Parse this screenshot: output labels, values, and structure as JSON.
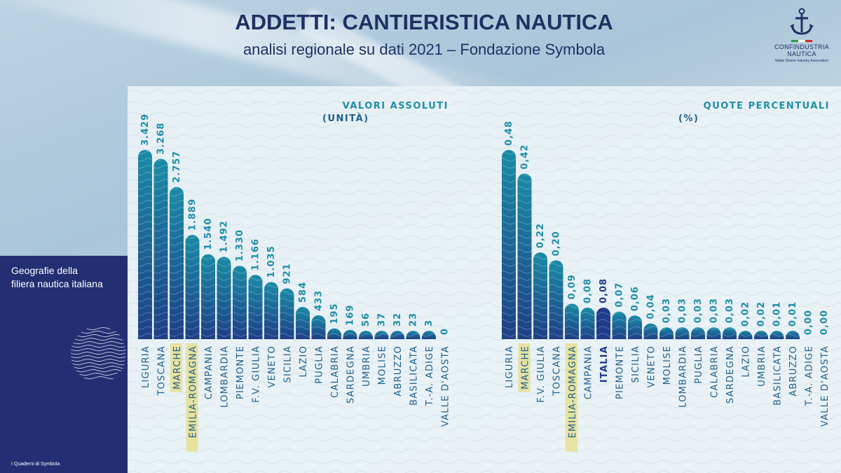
{
  "header": {
    "title": "ADDETTI: CANTIERISTICA NAUTICA",
    "subtitle": "analisi regionale su dati 2021 – Fondazione Symbola"
  },
  "logo": {
    "line1": "CONFINDUSTRIA",
    "line2": "NAUTICA",
    "tagline": "Italian Marine Industry Association",
    "flag_colors": [
      "#2e9a4a",
      "#ffffff",
      "#d9262b"
    ]
  },
  "side_panel": {
    "line1": "Geografie della",
    "line2": "filiera nautica italiana",
    "footer": "I Quaderni di Symbola"
  },
  "colors": {
    "bar_top": "#1a8ba6",
    "bar_bottom": "#1d3f86",
    "italia_bar": "#1e3b8c",
    "value_label": "#1f8ea9",
    "category_label": "#1f5f8c",
    "highlight": "#e6e2a0",
    "chart_title": "#1f8ea9"
  },
  "chart_data": [
    {
      "type": "bar",
      "title": "VALORI ASSOLUTI",
      "subtitle": "(UNITÀ)",
      "categories": [
        "LIGURIA",
        "TOSCANA",
        "MARCHE",
        "EMILIA-ROMAGNA",
        "CAMPANIA",
        "LOMBARDIA",
        "PIEMONTE",
        "F.V. GIULIA",
        "VENETO",
        "SICILIA",
        "LAZIO",
        "PUGLIA",
        "CALABRIA",
        "SARDEGNA",
        "UMBRIA",
        "MOLISE",
        "ABRUZZO",
        "BASILICATA",
        "T.-A. ADIGE",
        "VALLE D'AOSTA"
      ],
      "values": [
        3429,
        3268,
        2757,
        1889,
        1540,
        1492,
        1330,
        1166,
        1035,
        921,
        584,
        433,
        195,
        169,
        56,
        37,
        32,
        23,
        3,
        0
      ],
      "value_labels": [
        "3.429",
        "3.268",
        "2.757",
        "1.889",
        "1.540",
        "1.492",
        "1.330",
        "1.166",
        "1.035",
        "921",
        "584",
        "433",
        "195",
        "169",
        "56",
        "37",
        "32",
        "23",
        "3",
        "0"
      ],
      "highlighted": [
        "MARCHE",
        "EMILIA-ROMAGNA"
      ],
      "ylim": [
        0,
        3429
      ]
    },
    {
      "type": "bar",
      "title": "QUOTE PERCENTUALI",
      "subtitle": "(%)",
      "categories": [
        "LIGURIA",
        "MARCHE",
        "F.V. GIULIA",
        "TOSCANA",
        "EMILIA-ROMAGNA",
        "CAMPANIA",
        "ITALIA",
        "PIEMONTE",
        "SICILIA",
        "VENETO",
        "MOLISE",
        "LOMBARDIA",
        "PUGLIA",
        "CALABRIA",
        "SARDEGNA",
        "LAZIO",
        "UMBRIA",
        "BASILICATA",
        "ABRUZZO",
        "T.-A. ADIGE",
        "VALLE D'AOSTA"
      ],
      "values": [
        0.48,
        0.42,
        0.22,
        0.2,
        0.09,
        0.08,
        0.08,
        0.07,
        0.06,
        0.04,
        0.03,
        0.03,
        0.03,
        0.03,
        0.03,
        0.02,
        0.02,
        0.01,
        0.01,
        0.0,
        0.0
      ],
      "value_labels": [
        "0,48",
        "0,42",
        "0,22",
        "0,20",
        "0,09",
        "0,08",
        "0,08",
        "0,07",
        "0,06",
        "0,04",
        "0,03",
        "0,03",
        "0,03",
        "0,03",
        "0,03",
        "0,02",
        "0,02",
        "0,01",
        "0,01",
        "0,00",
        "0,00"
      ],
      "highlighted": [
        "MARCHE",
        "EMILIA-ROMAGNA"
      ],
      "emphasized": [
        "ITALIA"
      ],
      "ylim": [
        0,
        0.48
      ]
    }
  ]
}
